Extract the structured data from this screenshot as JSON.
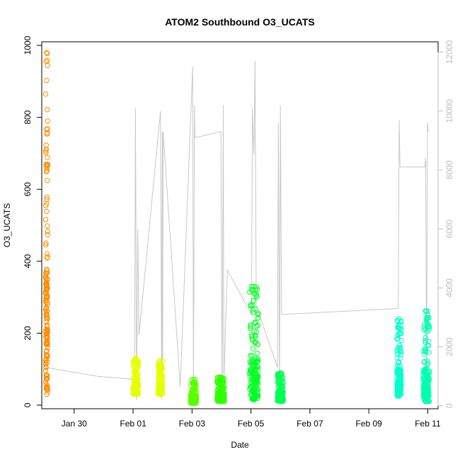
{
  "chart_data": {
    "type": "scatter",
    "title": "ATOM2 Southbound O3_UCATS",
    "xlabel": "Date",
    "ylabel": "O3_UCATS",
    "x_ticks": [
      {
        "label": "Jan 30",
        "value": 30
      },
      {
        "label": "Feb 01",
        "value": 32
      },
      {
        "label": "Feb 03",
        "value": 34
      },
      {
        "label": "Feb 05",
        "value": 36
      },
      {
        "label": "Feb 07",
        "value": 38
      },
      {
        "label": "Feb 09",
        "value": 40
      },
      {
        "label": "Feb 11",
        "value": 42
      }
    ],
    "xlim": [
      28.9,
      42.35
    ],
    "ylim": [
      -10,
      1010
    ],
    "y_ticks": [
      0,
      200,
      400,
      600,
      800,
      1000
    ],
    "y2lim": [
      -100,
      12350
    ],
    "y2_ticks": [
      0,
      2000,
      4000,
      6000,
      8000,
      10000,
      12000
    ],
    "grid": false,
    "line_color": "#c8c8c8",
    "flights": [
      {
        "x_start": 29.03,
        "x_end": 29.1,
        "y_min": 30,
        "y_max": 980,
        "color": "#ff8c00"
      },
      {
        "x_start": 32.0,
        "x_end": 32.18,
        "y_min": 30,
        "y_max": 130,
        "color": "#e6ff00"
      },
      {
        "x_start": 32.85,
        "x_end": 33.0,
        "y_min": 30,
        "y_max": 125,
        "color": "#e6ff00"
      },
      {
        "x_start": 33.95,
        "x_end": 34.15,
        "y_min": 5,
        "y_max": 72,
        "color": "#5cff00"
      },
      {
        "x_start": 34.85,
        "x_end": 35.1,
        "y_min": 10,
        "y_max": 78,
        "color": "#33ff00"
      },
      {
        "x_start": 35.95,
        "x_end": 36.25,
        "y_min": 15,
        "y_max": 330,
        "color": "#00ff22"
      },
      {
        "x_start": 36.9,
        "x_end": 37.1,
        "y_min": 10,
        "y_max": 90,
        "color": "#00ff55"
      },
      {
        "x_start": 40.95,
        "x_end": 41.1,
        "y_min": 25,
        "y_max": 240,
        "color": "#00ffcc"
      },
      {
        "x_start": 41.85,
        "x_end": 42.05,
        "y_min": 10,
        "y_max": 262,
        "color": "#00ffb0"
      }
    ],
    "altitude_track": [
      [
        29.05,
        1300
      ],
      [
        30.8,
        1000
      ],
      [
        32.05,
        900
      ],
      [
        32.08,
        10100
      ],
      [
        32.12,
        200
      ],
      [
        32.16,
        6000
      ],
      [
        32.2,
        2400
      ],
      [
        32.93,
        10000
      ],
      [
        32.97,
        200
      ],
      [
        32.99,
        9300
      ],
      [
        33.0,
        400
      ],
      [
        33.02,
        9300
      ],
      [
        33.6,
        650
      ],
      [
        34.02,
        11500
      ],
      [
        34.05,
        200
      ],
      [
        34.08,
        10200
      ],
      [
        34.1,
        9100
      ],
      [
        34.98,
        9300
      ],
      [
        35.02,
        200
      ],
      [
        35.06,
        10200
      ],
      [
        35.08,
        800
      ],
      [
        35.2,
        4600
      ],
      [
        36.02,
        3100
      ],
      [
        36.05,
        10100
      ],
      [
        36.1,
        8500
      ],
      [
        36.14,
        11700
      ],
      [
        36.18,
        3400
      ],
      [
        36.9,
        1300
      ],
      [
        36.93,
        9600
      ],
      [
        36.97,
        200
      ],
      [
        37.0,
        10200
      ],
      [
        37.04,
        3100
      ],
      [
        41.0,
        3300
      ],
      [
        41.03,
        9700
      ],
      [
        41.06,
        8100
      ],
      [
        41.9,
        8100
      ],
      [
        41.93,
        8400
      ],
      [
        41.96,
        200
      ],
      [
        41.99,
        9600
      ],
      [
        42.02,
        9300
      ]
    ]
  }
}
